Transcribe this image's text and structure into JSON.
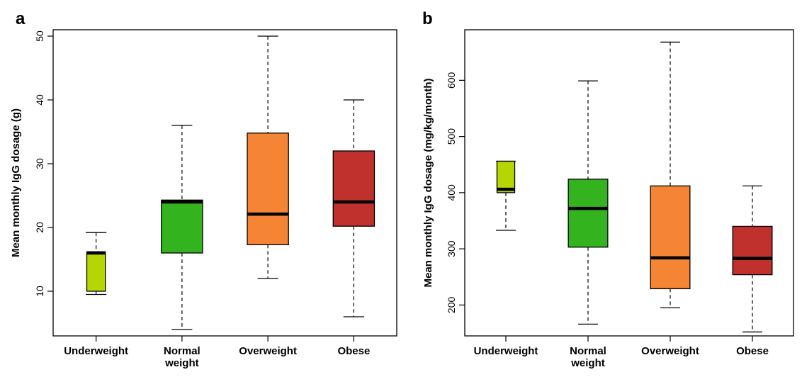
{
  "chart_data": [
    {
      "type": "box",
      "panel_label": "a",
      "ylabel": "Mean monthly IgG dosage (g)",
      "categories": [
        "Underweight",
        "Normal\nweight",
        "Overweight",
        "Obese"
      ],
      "ylim": [
        3,
        51
      ],
      "yticks": [
        10,
        20,
        30,
        40,
        50
      ],
      "colors": [
        "#b5d600",
        "#33b41e",
        "#f58535",
        "#c0302d"
      ],
      "boxes": [
        {
          "min": 9.5,
          "q1": 10,
          "median": 16,
          "q3": 16.2,
          "max": 19.2
        },
        {
          "min": 4,
          "q1": 16,
          "median": 24,
          "q3": 24.3,
          "max": 36
        },
        {
          "min": 12,
          "q1": 17.3,
          "median": 22.1,
          "q3": 34.8,
          "max": 50
        },
        {
          "min": 6,
          "q1": 20.2,
          "median": 24,
          "q3": 32,
          "max": 40
        }
      ]
    },
    {
      "type": "box",
      "panel_label": "b",
      "ylabel": "Mean monthly IgG dosage (mg/kg/month)",
      "categories": [
        "Underweight",
        "Normal\nweight",
        "Overweight",
        "Obese"
      ],
      "ylim": [
        145,
        690
      ],
      "yticks": [
        200,
        300,
        400,
        500,
        600
      ],
      "colors": [
        "#b5d600",
        "#33b41e",
        "#f58535",
        "#c0302d"
      ],
      "boxes": [
        {
          "min": 333,
          "q1": 400,
          "median": 406,
          "q3": 456,
          "max": 456
        },
        {
          "min": 166,
          "q1": 303,
          "median": 372,
          "q3": 424,
          "max": 599
        },
        {
          "min": 195,
          "q1": 229,
          "median": 284,
          "q3": 412,
          "max": 668
        },
        {
          "min": 152,
          "q1": 254,
          "median": 283,
          "q3": 340,
          "max": 412
        }
      ]
    }
  ]
}
